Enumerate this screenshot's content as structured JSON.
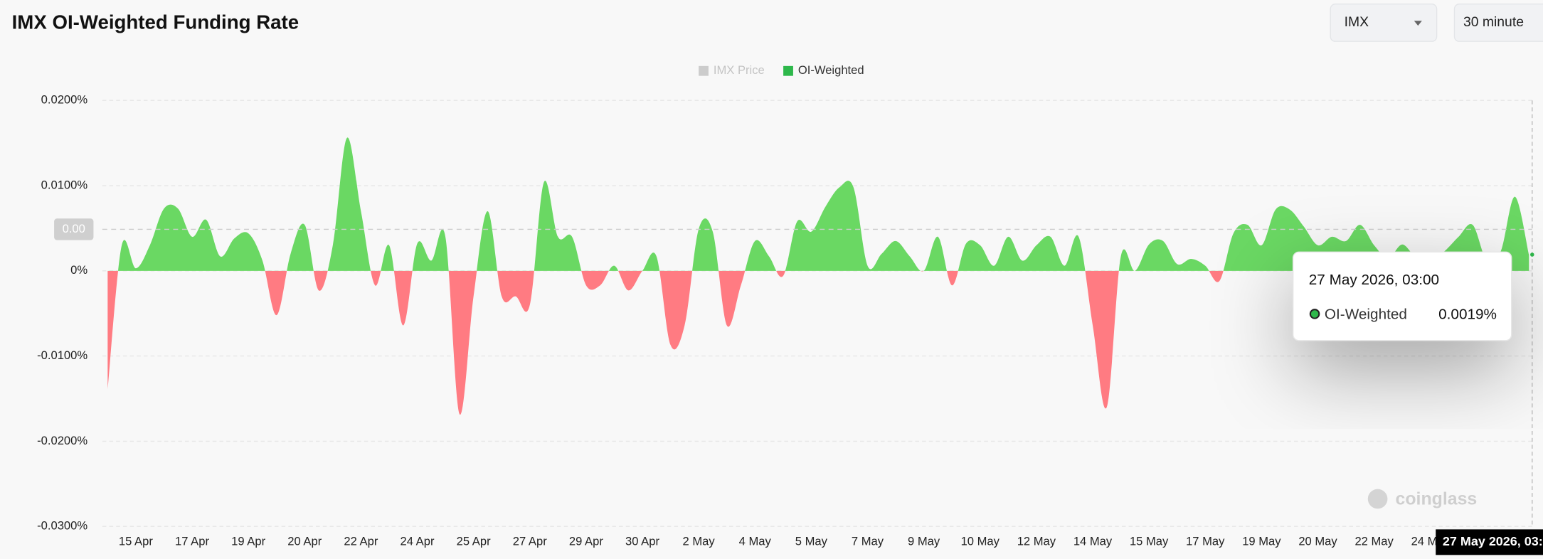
{
  "header": {
    "title": "IMX OI-Weighted Funding Rate",
    "symbol_select": "IMX",
    "interval_select": "30 minute"
  },
  "chart_data": {
    "type": "area",
    "categories": [
      null,
      null,
      "15 Apr",
      null,
      null,
      null,
      "17 Apr",
      null,
      null,
      null,
      "19 Apr",
      null,
      null,
      null,
      "20 Apr",
      null,
      null,
      null,
      "22 Apr",
      null,
      null,
      null,
      "24 Apr",
      null,
      null,
      null,
      "25 Apr",
      null,
      null,
      null,
      "27 Apr",
      null,
      null,
      null,
      "29 Apr",
      null,
      null,
      null,
      "30 Apr",
      null,
      null,
      null,
      "2 May",
      null,
      null,
      null,
      "4 May",
      null,
      null,
      null,
      "5 May",
      null,
      null,
      null,
      "7 May",
      null,
      null,
      null,
      "9 May",
      null,
      null,
      null,
      "10 May",
      null,
      null,
      null,
      "12 May",
      null,
      null,
      null,
      "14 May",
      null,
      null,
      null,
      "15 May",
      null,
      null,
      null,
      "17 May",
      null,
      null,
      null,
      "19 May",
      null,
      null,
      null,
      "20 May",
      null,
      null,
      null,
      "22 May",
      null,
      null,
      null,
      "24 May",
      null,
      null,
      null,
      null,
      null,
      null,
      null
    ],
    "series": [
      {
        "name": "OI-Weighted",
        "color": "#2eb84b",
        "positive_color": "#6ad863",
        "negative_color": "#ff7b82",
        "values": [
          -0.0139,
          0.003,
          0.0003,
          0.003,
          0.0073,
          0.0073,
          0.004,
          0.006,
          0.0017,
          0.0038,
          0.0044,
          0.0012,
          -0.0052,
          0.002,
          0.0054,
          -0.0023,
          0.003,
          0.0156,
          0.007,
          -0.0017,
          0.003,
          -0.0064,
          0.0032,
          0.0012,
          0.004,
          -0.0168,
          -0.003,
          0.007,
          -0.003,
          -0.003,
          -0.004,
          0.0104,
          0.004,
          0.004,
          -0.0017,
          -0.0017,
          0.0006,
          -0.0023,
          0,
          0.0017,
          -0.0087,
          -0.0064,
          0.0049,
          0.0046,
          -0.0064,
          -0.0017,
          0.0035,
          0.0017,
          -0.0006,
          0.0058,
          0.0046,
          0.0075,
          0.0098,
          0.0098,
          0.0006,
          0.002,
          0.0035,
          0.0017,
          0,
          0.004,
          -0.0017,
          0.0032,
          0.003,
          0.0006,
          0.004,
          0.0012,
          0.003,
          0.004,
          0.0006,
          0.004,
          -0.0064,
          -0.016,
          0.0017,
          0,
          0.0031,
          0.0035,
          0.0008,
          0.0014,
          0.0006,
          -0.0012,
          0.0044,
          0.0054,
          0.003,
          0.0072,
          0.0072,
          0.0052,
          0.003,
          0.004,
          0.0035,
          0.0054,
          0.003,
          0.0015,
          0.0031,
          0.0015,
          0.0012,
          0.0023,
          0.004,
          0.0054,
          0.0012,
          0.0023,
          0.0087,
          0.0019
        ]
      }
    ],
    "hidden_series": [
      {
        "name": "IMX Price",
        "color": "#cccccc"
      }
    ],
    "ylim": [
      -0.03,
      0.02
    ],
    "yticks": [
      {
        "value": 0.02,
        "label": "0.0200%"
      },
      {
        "value": 0.01,
        "label": "0.0100%"
      },
      {
        "value": 0,
        "label": "0%"
      },
      {
        "value": -0.01,
        "label": "-0.0100%"
      },
      {
        "value": -0.02,
        "label": "-0.0200%"
      },
      {
        "value": -0.03,
        "label": "-0.0300%"
      }
    ],
    "grid": true,
    "crosshair_label": "0.00",
    "tooltip": {
      "date": "27 May 2026, 03:00",
      "series_name": "OI-Weighted",
      "value": 0.0019,
      "value_label": "0.0019%"
    },
    "watermark": "coinglass"
  }
}
